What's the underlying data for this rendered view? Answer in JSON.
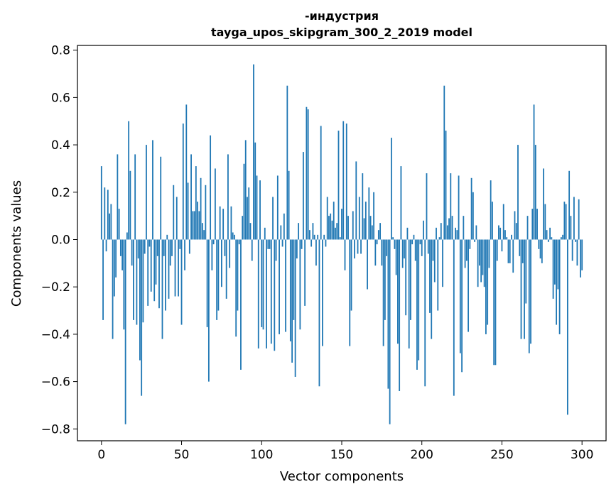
{
  "chart_data": {
    "type": "bar",
    "title_lines": [
      "-индустрия",
      "tayga_upos_skipgram_300_2_2019 model"
    ],
    "xlabel": "Vector components",
    "ylabel": "Components values",
    "xlim": [
      -15,
      315
    ],
    "ylim": [
      -0.85,
      0.82
    ],
    "xticks": [
      0,
      50,
      100,
      150,
      200,
      250,
      300
    ],
    "yticks": [
      -0.8,
      -0.6,
      -0.4,
      -0.2,
      0.0,
      0.2,
      0.4,
      0.6,
      0.8
    ],
    "ytick_labels": [
      "−0.8",
      "−0.6",
      "−0.4",
      "−0.2",
      "0.0",
      "0.2",
      "0.4",
      "0.6",
      "0.8"
    ],
    "bar_color": "#1f77b4",
    "grid": false,
    "values": [
      0.31,
      -0.34,
      0.22,
      -0.05,
      0.21,
      0.11,
      0.15,
      -0.42,
      -0.24,
      -0.16,
      0.36,
      0.13,
      -0.07,
      -0.13,
      -0.38,
      -0.78,
      0.03,
      0.5,
      0.29,
      -0.11,
      -0.34,
      0.36,
      -0.36,
      -0.08,
      -0.51,
      -0.66,
      -0.35,
      -0.06,
      0.4,
      -0.28,
      -0.03,
      -0.22,
      0.42,
      -0.26,
      -0.19,
      -0.07,
      -0.29,
      0.35,
      -0.42,
      -0.07,
      -0.3,
      0.02,
      -0.25,
      -0.11,
      -0.07,
      0.23,
      -0.24,
      0.18,
      -0.24,
      -0.04,
      -0.36,
      0.49,
      -0.13,
      0.57,
      0.24,
      -0.06,
      0.36,
      0.12,
      0.12,
      0.31,
      0.16,
      0.12,
      0.26,
      0.07,
      0.04,
      0.23,
      -0.37,
      -0.6,
      0.44,
      -0.13,
      -0.02,
      0.3,
      -0.34,
      -0.3,
      0.14,
      -0.2,
      0.13,
      -0.07,
      -0.25,
      0.36,
      -0.12,
      0.14,
      0.03,
      0.02,
      -0.41,
      -0.3,
      -0.02,
      -0.55,
      0.1,
      0.32,
      0.42,
      0.18,
      0.22,
      0.07,
      -0.09,
      0.74,
      0.41,
      0.27,
      -0.46,
      0.25,
      -0.37,
      -0.38,
      0.05,
      -0.46,
      -0.04,
      -0.04,
      -0.44,
      0.18,
      -0.47,
      -0.09,
      0.27,
      -0.4,
      0.06,
      -0.03,
      0.11,
      -0.39,
      0.65,
      0.29,
      -0.43,
      -0.52,
      -0.34,
      -0.58,
      -0.08,
      0.07,
      -0.38,
      -0.04,
      0.37,
      -0.28,
      0.56,
      0.55,
      0.04,
      -0.03,
      0.07,
      0.02,
      -0.11,
      0.02,
      -0.62,
      0.48,
      -0.45,
      0.02,
      -0.03,
      0.18,
      0.1,
      0.11,
      0.08,
      0.16,
      0.05,
      0.07,
      0.46,
      0.01,
      0.13,
      0.5,
      -0.13,
      0.49,
      0.1,
      -0.45,
      -0.3,
      0.12,
      -0.08,
      0.33,
      -0.06,
      0.18,
      -0.06,
      0.28,
      0.09,
      0.16,
      -0.21,
      0.22,
      0.1,
      0.06,
      0.2,
      -0.11,
      -0.02,
      0.04,
      0.07,
      -0.11,
      -0.45,
      -0.34,
      -0.07,
      -0.63,
      -0.78,
      0.43,
      0.01,
      -0.04,
      -0.15,
      -0.44,
      -0.64,
      0.31,
      -0.12,
      -0.08,
      -0.32,
      0.05,
      -0.46,
      -0.34,
      -0.02,
      0.02,
      -0.09,
      -0.55,
      -0.51,
      -0.02,
      -0.07,
      0.08,
      -0.62,
      0.28,
      -0.06,
      -0.31,
      -0.42,
      -0.09,
      -0.18,
      0.05,
      -0.3,
      0.01,
      0.07,
      -0.2,
      0.65,
      0.46,
      0.06,
      0.09,
      0.28,
      0.1,
      -0.66,
      0.05,
      0.04,
      0.27,
      -0.48,
      -0.56,
      0.1,
      -0.12,
      -0.09,
      -0.39,
      -0.04,
      0.26,
      0.2,
      -0.01,
      0.06,
      -0.2,
      -0.11,
      -0.18,
      -0.15,
      -0.2,
      -0.4,
      -0.36,
      -0.12,
      0.25,
      0.16,
      -0.53,
      -0.53,
      -0.09,
      0.06,
      0.05,
      -0.05,
      0.15,
      0.04,
      0.01,
      -0.1,
      -0.1,
      0.02,
      -0.14,
      0.12,
      0.07,
      0.4,
      -0.07,
      -0.42,
      -0.1,
      -0.42,
      -0.27,
      0.1,
      -0.48,
      -0.44,
      0.13,
      0.57,
      0.4,
      0.13,
      -0.04,
      -0.08,
      -0.1,
      0.3,
      0.15,
      0.04,
      -0.01,
      0.05,
      0.01,
      -0.25,
      -0.19,
      -0.36,
      -0.21,
      -0.4,
      0.01,
      0.02,
      0.16,
      0.15,
      -0.74,
      0.29,
      0.1,
      -0.09,
      0.18,
      -0.01,
      -0.11,
      0.17,
      -0.16,
      -0.13
    ]
  }
}
